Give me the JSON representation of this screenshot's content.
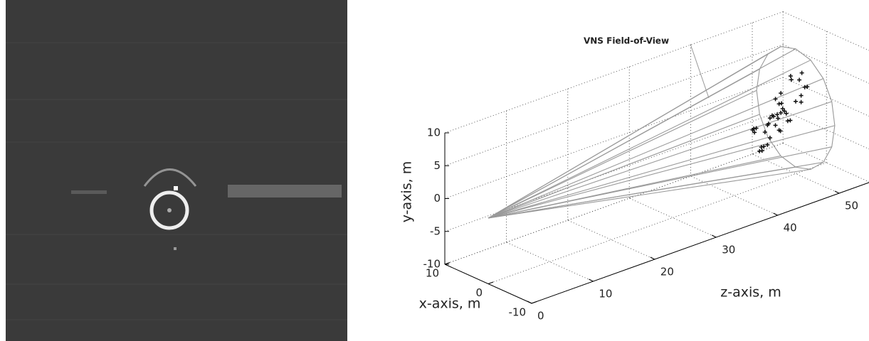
{
  "chart_data": {
    "type": "scatter3d",
    "annotation": "VNS Field-of-View",
    "xlabel": "x-axis, m",
    "ylabel": "y-axis, m",
    "zlabel": "z-axis, m",
    "xlim": [
      -10,
      10
    ],
    "ylim": [
      -10,
      10
    ],
    "zlim": [
      0,
      55
    ],
    "xticks": [
      -10,
      0,
      10
    ],
    "yticks": [
      -10,
      -5,
      0,
      5,
      10
    ],
    "zticks": [
      0,
      10,
      20,
      30,
      40,
      50
    ],
    "grid": true,
    "series": [
      {
        "color": "#111111",
        "x": [
          -4,
          -2,
          0,
          2,
          4,
          -3,
          -1,
          1,
          3,
          5,
          -5,
          -2,
          0,
          2,
          4,
          -4,
          -1,
          1,
          3,
          -3,
          0,
          2,
          -2,
          1,
          3,
          -1,
          4,
          -4,
          0,
          2,
          5,
          -3,
          1,
          -1,
          3,
          -2,
          0,
          4,
          -5,
          2
        ],
        "y": [
          -2,
          -3,
          -1,
          -2,
          -3,
          0,
          -1,
          -2,
          -1,
          -3,
          -2,
          1,
          0,
          -1,
          -2,
          2,
          3,
          1,
          0,
          -3,
          -2,
          2,
          0,
          4,
          1,
          -1,
          3,
          -1,
          5,
          -2,
          0,
          1,
          -3,
          2,
          -1,
          -3,
          1,
          -2,
          0,
          3
        ],
        "z": [
          42,
          44,
          43,
          45,
          46,
          47,
          48,
          44,
          50,
          52,
          41,
          45,
          47,
          49,
          51,
          43,
          46,
          48,
          53,
          42,
          45,
          49,
          44,
          50,
          54,
          46,
          52,
          43,
          51,
          47,
          55,
          45,
          48,
          47,
          53,
          43,
          50,
          49,
          44,
          52
        ]
      }
    ]
  }
}
